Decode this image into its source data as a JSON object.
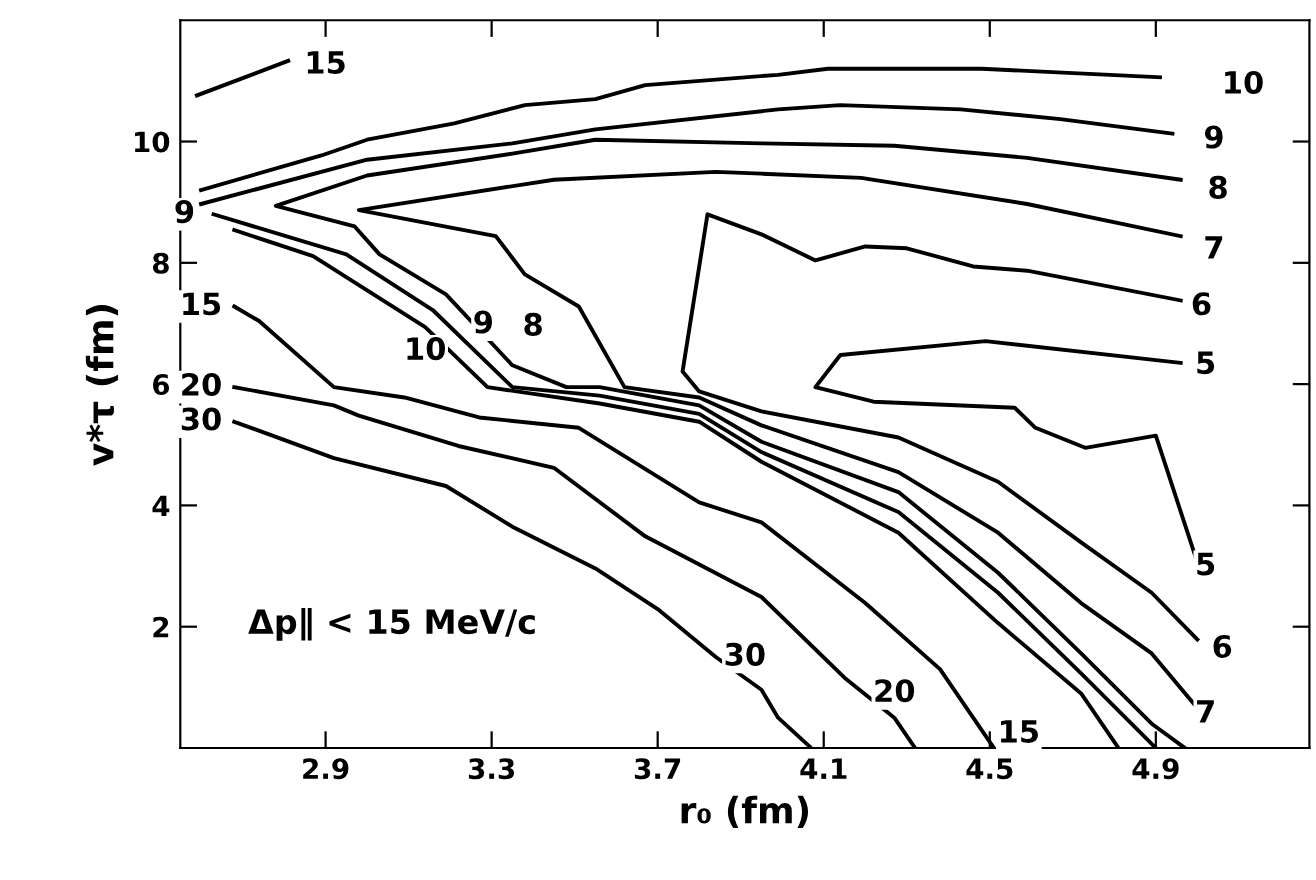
{
  "chart_data": {
    "type": "line",
    "xlabel": "r₀ (fm)",
    "ylabel": "v*τ (fm)",
    "xlim": [
      2.55,
      5.27
    ],
    "ylim": [
      0,
      12
    ],
    "xticks": [
      2.9,
      3.3,
      3.7,
      4.1,
      4.5,
      4.9
    ],
    "yticks": [
      2,
      4,
      6,
      8,
      10
    ],
    "grid": false,
    "legend": false,
    "marker": "none",
    "line_style": "solid",
    "series": [
      {
        "color": "#000000",
        "x": [
          2.59,
          2.81
        ],
        "values": [
          10.76,
          11.33
        ]
      },
      {
        "color": "#000000",
        "x": [
          2.6,
          2.89,
          3.0,
          3.21,
          3.38,
          3.55,
          3.67,
          3.99,
          4.11,
          4.48,
          4.91
        ],
        "values": [
          9.2,
          9.77,
          10.03,
          10.3,
          10.6,
          10.7,
          10.93,
          11.1,
          11.2,
          11.2,
          11.06
        ]
      },
      {
        "color": "#000000",
        "x": [
          2.6,
          3.0,
          3.35,
          3.55,
          3.99,
          4.14,
          4.43,
          4.67,
          4.94
        ],
        "values": [
          8.97,
          9.7,
          9.97,
          10.2,
          10.53,
          10.6,
          10.53,
          10.37,
          10.13
        ]
      },
      {
        "color": "#000000",
        "x": [
          4.96,
          4.59,
          4.27,
          3.95,
          3.55,
          3.35,
          3.0,
          2.78,
          2.97,
          3.03,
          3.19,
          3.35,
          3.48,
          3.56,
          3.8,
          3.95,
          4.28,
          4.52,
          4.72,
          4.89,
          4.97
        ],
        "values": [
          9.37,
          9.73,
          9.93,
          9.97,
          10.03,
          9.8,
          9.44,
          8.94,
          8.6,
          8.14,
          7.48,
          6.31,
          5.95,
          5.95,
          5.65,
          5.05,
          4.22,
          2.89,
          1.56,
          0.4,
          0
        ]
      },
      {
        "color": "#000000",
        "x": [
          4.96,
          4.59,
          4.19,
          3.95,
          3.84,
          3.45,
          2.98,
          3.31,
          3.38,
          3.51,
          3.62,
          3.8,
          3.95,
          4.28,
          4.52,
          4.72,
          4.89,
          5.0
        ],
        "values": [
          8.44,
          8.97,
          9.4,
          9.47,
          9.5,
          9.37,
          8.87,
          8.44,
          7.81,
          7.28,
          5.95,
          5.78,
          5.32,
          4.55,
          3.55,
          2.39,
          1.56,
          0.66
        ]
      },
      {
        "color": "#000000",
        "x": [
          4.96,
          4.59,
          4.46,
          4.3,
          4.2,
          4.08,
          3.95,
          3.82,
          3.76,
          3.8,
          3.95,
          4.28,
          4.52,
          4.72,
          4.89,
          5.0
        ],
        "values": [
          7.38,
          7.87,
          7.94,
          8.24,
          8.27,
          8.04,
          8.47,
          8.8,
          6.21,
          5.88,
          5.55,
          5.12,
          4.39,
          3.39,
          2.56,
          1.79
        ]
      },
      {
        "color": "#000000",
        "x": [
          4.96,
          4.49,
          4.14,
          4.08,
          4.22,
          4.56,
          4.61,
          4.73,
          4.9,
          5.0
        ],
        "values": [
          6.35,
          6.71,
          6.48,
          5.95,
          5.71,
          5.61,
          5.28,
          4.95,
          5.15,
          3.06
        ]
      },
      {
        "color": "#000000",
        "x": [
          2.63,
          2.95,
          3.16,
          3.35,
          3.56,
          3.8,
          3.95,
          4.28,
          4.52,
          4.72,
          4.9
        ],
        "values": [
          8.8,
          8.14,
          7.21,
          5.95,
          5.81,
          5.51,
          4.88,
          3.89,
          2.56,
          1.23,
          0
        ]
      },
      {
        "color": "#000000",
        "x": [
          2.68,
          2.87,
          3.14,
          3.29,
          3.56,
          3.8,
          3.95,
          4.28,
          4.52,
          4.72,
          4.81
        ],
        "values": [
          8.54,
          8.11,
          6.94,
          5.95,
          5.68,
          5.38,
          4.72,
          3.55,
          2.06,
          0.9,
          0
        ]
      },
      {
        "color": "#000000",
        "x": [
          2.68,
          2.74,
          2.92,
          3.09,
          3.27,
          3.51,
          3.8,
          3.95,
          4.2,
          4.38,
          4.51
        ],
        "values": [
          7.28,
          7.04,
          5.95,
          5.78,
          5.45,
          5.28,
          4.05,
          3.72,
          2.39,
          1.3,
          0
        ]
      },
      {
        "color": "#000000",
        "x": [
          2.68,
          2.92,
          2.98,
          3.22,
          3.45,
          3.67,
          3.95,
          4.15,
          4.27,
          4.32
        ],
        "values": [
          5.95,
          5.65,
          5.48,
          4.98,
          4.62,
          3.49,
          2.49,
          1.16,
          0.5,
          0
        ]
      },
      {
        "color": "#000000",
        "x": [
          2.68,
          2.92,
          3.19,
          3.35,
          3.55,
          3.7,
          3.84,
          3.95,
          3.99,
          4.07
        ],
        "values": [
          5.38,
          4.78,
          4.32,
          3.65,
          2.96,
          2.29,
          1.5,
          0.96,
          0.5,
          0
        ]
      }
    ],
    "annotations": [
      {
        "text": "15",
        "x": 2.9,
        "y": 11.26
      },
      {
        "text": "10",
        "x": 5.11,
        "y": 10.93
      },
      {
        "text": "9",
        "x": 5.04,
        "y": 10.03
      },
      {
        "text": "8",
        "x": 5.05,
        "y": 9.2
      },
      {
        "text": "7",
        "x": 5.04,
        "y": 8.21
      },
      {
        "text": "6",
        "x": 5.01,
        "y": 7.28
      },
      {
        "text": "5",
        "x": 5.02,
        "y": 6.31
      },
      {
        "text": "5",
        "x": 5.02,
        "y": 2.99
      },
      {
        "text": "6",
        "x": 5.06,
        "y": 1.63
      },
      {
        "text": "7",
        "x": 5.02,
        "y": 0.56
      },
      {
        "text": "15",
        "x": 4.57,
        "y": 0.23
      },
      {
        "text": "20",
        "x": 4.27,
        "y": 0.9
      },
      {
        "text": "30",
        "x": 3.91,
        "y": 1.5
      },
      {
        "text": "10",
        "x": 3.14,
        "y": 6.54
      },
      {
        "text": "9",
        "x": 3.28,
        "y": 6.98
      },
      {
        "text": "8",
        "x": 3.4,
        "y": 6.94
      },
      {
        "text": "9",
        "x": 2.56,
        "y": 8.8
      },
      {
        "text": "15",
        "x": 2.6,
        "y": 7.28
      },
      {
        "text": "20",
        "x": 2.6,
        "y": 5.95
      },
      {
        "text": "30",
        "x": 2.6,
        "y": 5.38
      },
      "Δp∥ < 15 MeV/c"
    ]
  }
}
